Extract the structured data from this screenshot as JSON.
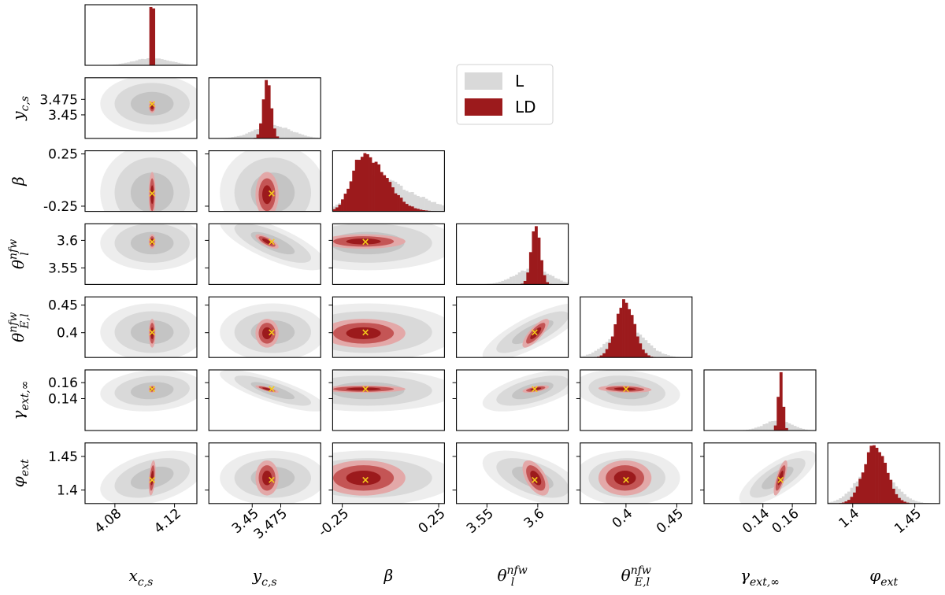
{
  "chart_data": {
    "type": "corner",
    "parameters": [
      {
        "id": "xcs",
        "label": "x_c,s",
        "range": [
          4.06,
          4.135
        ],
        "ticks": [
          4.08,
          4.12
        ],
        "tick_labels": [
          "4.08",
          "4.12"
        ],
        "truth": 4.105
      },
      {
        "id": "ycs",
        "label": "y_c,s",
        "range": [
          3.412,
          3.51
        ],
        "ticks": [
          3.45,
          3.475
        ],
        "tick_labels": [
          "3.45",
          "3.475"
        ],
        "truth": 3.467
      },
      {
        "id": "beta",
        "label": "β",
        "range": [
          -0.3,
          0.28
        ],
        "ticks": [
          -0.25,
          0.25
        ],
        "tick_labels": [
          "-0.25",
          "0.25"
        ],
        "truth": -0.13
      },
      {
        "id": "thl",
        "label": "θ_l^nfw",
        "range": [
          3.52,
          3.63
        ],
        "ticks": [
          3.55,
          3.6
        ],
        "tick_labels": [
          "3.55",
          "3.6"
        ],
        "truth": 3.597
      },
      {
        "id": "thE",
        "label": "θ_E,l^nfw",
        "range": [
          0.355,
          0.465
        ],
        "ticks": [
          0.4,
          0.45
        ],
        "tick_labels": [
          "0.4",
          "0.45"
        ],
        "truth": 0.4
      },
      {
        "id": "gam",
        "label": "γ_ext,∞",
        "range": [
          0.1,
          0.176
        ],
        "ticks": [
          0.14,
          0.16
        ],
        "tick_labels": [
          "0.14",
          "0.16"
        ],
        "truth": 0.152
      },
      {
        "id": "phi",
        "label": "φ_ext",
        "range": [
          1.38,
          1.47
        ],
        "ticks": [
          1.4,
          1.45
        ],
        "tick_labels": [
          "1.4",
          "1.45"
        ],
        "truth": 1.415
      }
    ],
    "x_axis_labels": [
      {
        "base": "x",
        "sub": "c,s"
      },
      {
        "base": "y",
        "sub": "c,s"
      },
      {
        "base": "β",
        "sub": ""
      },
      {
        "base": "θ",
        "sub": "l",
        "sup": "nfw"
      },
      {
        "base": "θ",
        "sub": "E,l",
        "sup": "nfw"
      },
      {
        "base": "γ",
        "sub": "ext,∞"
      },
      {
        "base": "φ",
        "sub": "ext"
      }
    ],
    "posteriors": {
      "L": {
        "mean": [
          4.105,
          3.468,
          -0.12,
          3.595,
          0.401,
          0.15,
          1.418
        ],
        "sd": [
          0.012,
          0.016,
          0.16,
          0.017,
          0.018,
          0.009,
          0.014
        ]
      },
      "LD": {
        "mean": [
          4.105,
          3.463,
          -0.14,
          3.598,
          0.399,
          0.152,
          1.418
        ],
        "sd": [
          0.0008,
          0.0035,
          0.075,
          0.0045,
          0.009,
          0.0016,
          0.009
        ]
      }
    },
    "correlations": [
      [
        "xcs",
        "ycs",
        0.0
      ],
      [
        "ycs",
        "thl",
        -0.75
      ],
      [
        "ycs",
        "gam",
        -0.8
      ],
      [
        "thl",
        "thE",
        0.8
      ],
      [
        "thl",
        "gam",
        0.6
      ],
      [
        "thl",
        "phi",
        -0.55
      ],
      [
        "thE",
        "gam",
        -0.2
      ],
      [
        "gam",
        "phi",
        0.75
      ],
      [
        "xcs",
        "phi",
        0.4
      ],
      [
        "xcs",
        "gam",
        0.15
      ]
    ],
    "legend": {
      "position": "top-center",
      "entries": [
        {
          "name": "L",
          "color": "#d9d9d9"
        },
        {
          "name": "LD",
          "color": "#9c1a1c"
        }
      ]
    },
    "truth_marker": {
      "symbol": "×",
      "color": "#f5cd1b"
    },
    "colors": {
      "L_levels": [
        "#ededed",
        "#d9d9d9",
        "#c4c4c4"
      ],
      "LD_levels": [
        "#e3a8a8",
        "#c45555",
        "#9c1a1c"
      ]
    }
  }
}
